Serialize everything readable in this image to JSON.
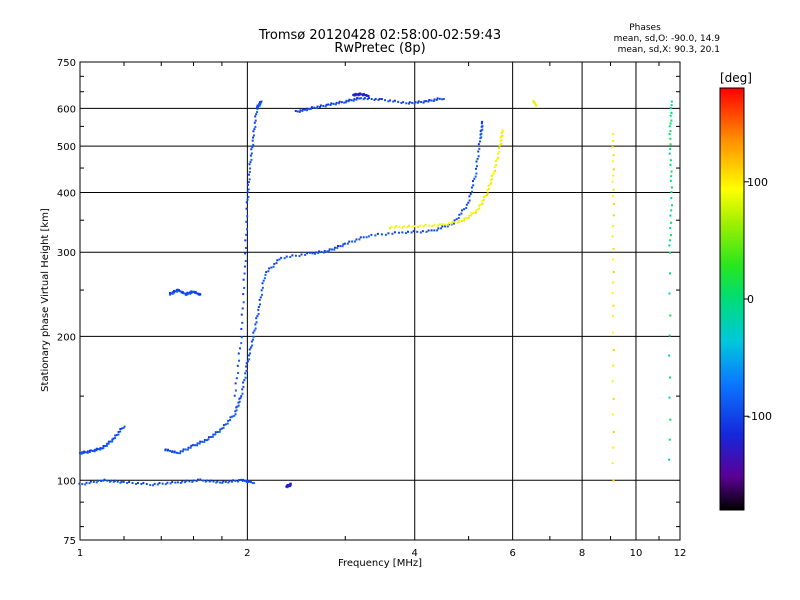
{
  "title_line1": "Tromsø 20120428 02:58:00-02:59:43",
  "title_line2": "RwPretec (8p)",
  "phases": {
    "heading": "Phases",
    "line_o": "mean, sd,O: -90.0, 14.9",
    "line_x": "mean, sd,X:  90.3, 20.1"
  },
  "colorbar": {
    "unit": "[deg]",
    "ticks": [
      {
        "value": 100,
        "label": "100"
      },
      {
        "value": 0,
        "label": "0"
      },
      {
        "value": -100,
        "label": "-100"
      }
    ],
    "range": [
      -180,
      180
    ]
  },
  "chart_data": {
    "type": "scatter",
    "xlabel": "Frequency [MHz]",
    "ylabel": "Stationary phase Virtual Height [km]",
    "xscale": "log",
    "yscale": "log",
    "xlim": [
      1,
      12
    ],
    "ylim": [
      75,
      750
    ],
    "x_ticks": [
      1,
      2,
      4,
      6,
      8,
      10,
      12
    ],
    "x_tick_labels": [
      "1",
      "2",
      "4",
      "6",
      "8",
      "10",
      "12"
    ],
    "y_ticks": [
      75,
      100,
      200,
      300,
      400,
      500,
      600,
      750
    ],
    "y_tick_labels": [
      "75",
      "100",
      "200",
      "300",
      "400",
      "500",
      "600",
      "750"
    ],
    "grid": true,
    "traces": [
      {
        "kind": "o-mode",
        "phase": -95,
        "points": [
          [
            1.0,
            98
          ],
          [
            1.1,
            100
          ],
          [
            1.2,
            99
          ],
          [
            1.35,
            98
          ],
          [
            1.5,
            99
          ],
          [
            1.65,
            100
          ],
          [
            1.8,
            99
          ],
          [
            1.95,
            100
          ],
          [
            2.05,
            99
          ]
        ]
      },
      {
        "kind": "o-mode",
        "phase": -95,
        "points": [
          [
            1.0,
            114
          ],
          [
            1.05,
            115
          ],
          [
            1.1,
            117
          ],
          [
            1.15,
            122
          ],
          [
            1.2,
            130
          ]
        ]
      },
      {
        "kind": "o-mode",
        "phase": -95,
        "points": [
          [
            1.42,
            116
          ],
          [
            1.5,
            114
          ],
          [
            1.6,
            118
          ],
          [
            1.7,
            122
          ],
          [
            1.8,
            128
          ],
          [
            1.9,
            138
          ],
          [
            1.95,
            150
          ],
          [
            2.0,
            175
          ],
          [
            2.05,
            200
          ],
          [
            2.1,
            230
          ],
          [
            2.15,
            270
          ],
          [
            2.3,
            292
          ],
          [
            2.6,
            298
          ],
          [
            2.8,
            302
          ],
          [
            3.0,
            312
          ],
          [
            3.3,
            325
          ],
          [
            3.8,
            330
          ],
          [
            4.3,
            332
          ],
          [
            4.7,
            345
          ],
          [
            5.0,
            380
          ],
          [
            5.15,
            440
          ],
          [
            5.25,
            520
          ],
          [
            5.3,
            560
          ]
        ]
      },
      {
        "kind": "o-mode",
        "phase": -95,
        "points": [
          [
            1.9,
            150
          ],
          [
            1.95,
            200
          ],
          [
            1.98,
            280
          ],
          [
            2.0,
            380
          ],
          [
            2.02,
            450
          ],
          [
            2.05,
            520
          ],
          [
            2.08,
            600
          ],
          [
            2.12,
            620
          ]
        ]
      },
      {
        "kind": "o-mode",
        "phase": -95,
        "points": [
          [
            1.45,
            245
          ],
          [
            1.5,
            250
          ],
          [
            1.55,
            245
          ],
          [
            1.6,
            248
          ],
          [
            1.65,
            244
          ]
        ]
      },
      {
        "kind": "o-mode",
        "phase": -100,
        "points": [
          [
            2.45,
            590
          ],
          [
            2.6,
            600
          ],
          [
            2.8,
            610
          ],
          [
            3.0,
            620
          ],
          [
            3.2,
            630
          ],
          [
            3.5,
            625
          ],
          [
            3.9,
            615
          ],
          [
            4.2,
            620
          ],
          [
            4.5,
            630
          ]
        ]
      },
      {
        "kind": "o-mode",
        "phase": -120,
        "points": [
          [
            3.1,
            640
          ],
          [
            3.2,
            642
          ],
          [
            3.3,
            638
          ]
        ]
      },
      {
        "kind": "x-mode",
        "phase": 95,
        "points": [
          [
            3.6,
            338
          ],
          [
            4.0,
            340
          ],
          [
            4.5,
            342
          ],
          [
            4.9,
            350
          ],
          [
            5.2,
            368
          ],
          [
            5.4,
            400
          ],
          [
            5.55,
            440
          ],
          [
            5.7,
            500
          ],
          [
            5.75,
            540
          ]
        ]
      },
      {
        "kind": "x-mode",
        "phase": 90,
        "points": [
          [
            6.55,
            620
          ],
          [
            6.6,
            610
          ]
        ]
      },
      {
        "kind": "x-mode",
        "phase": 100,
        "points": [
          [
            9.1,
            100
          ],
          [
            9.1,
            220
          ],
          [
            9.1,
            380
          ],
          [
            9.1,
            530
          ]
        ]
      },
      {
        "kind": "scatter",
        "phase": 0,
        "points": [
          [
            11.5,
            110
          ],
          [
            11.5,
            300
          ],
          [
            11.6,
            400
          ],
          [
            11.5,
            520
          ],
          [
            11.6,
            620
          ]
        ]
      },
      {
        "kind": "scatter",
        "phase": -120,
        "points": [
          [
            2.35,
            97
          ],
          [
            2.4,
            98
          ]
        ]
      }
    ]
  }
}
